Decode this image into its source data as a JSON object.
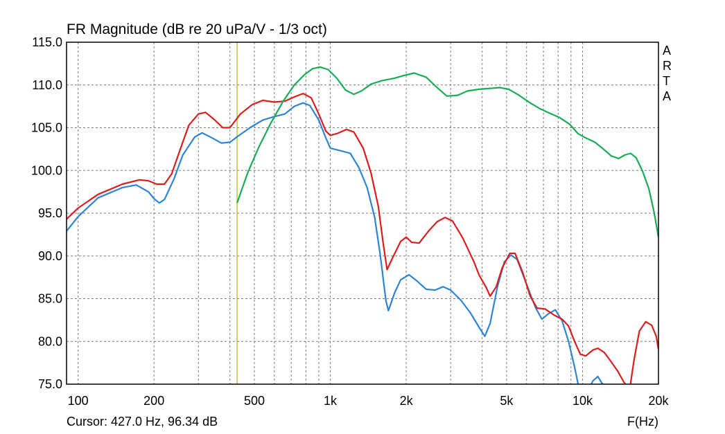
{
  "chart_data": {
    "type": "line",
    "title": "FR Magnitude (dB re 20 uPa/V - 1/3 oct)",
    "xlabel": "F(Hz)",
    "ylabel": "",
    "x_scale": "log",
    "xlim": [
      90,
      20000
    ],
    "ylim": [
      75,
      115
    ],
    "grid": true,
    "y_ticks": [
      "115.0",
      "110.0",
      "105.0",
      "100.0",
      "95.0",
      "90.0",
      "85.0",
      "80.0",
      "75.0"
    ],
    "x_ticks": [
      {
        "value": 100,
        "label": "100"
      },
      {
        "value": 200,
        "label": "200"
      },
      {
        "value": 500,
        "label": "500"
      },
      {
        "value": 1000,
        "label": "1k"
      },
      {
        "value": 2000,
        "label": "2k"
      },
      {
        "value": 5000,
        "label": "5k"
      },
      {
        "value": 10000,
        "label": "10k"
      },
      {
        "value": 20000,
        "label": "20k"
      }
    ],
    "watermark": [
      "A",
      "R",
      "T",
      "A"
    ],
    "cursor": {
      "x": 427,
      "label": "Cursor: 427.0 Hz, 96.34 dB",
      "color": "#b5b53a"
    },
    "series": [
      {
        "color": "#2b84d8",
        "points": [
          [
            90,
            92.9
          ],
          [
            100,
            94.6
          ],
          [
            120,
            96.8
          ],
          [
            150,
            98.0
          ],
          [
            170,
            98.3
          ],
          [
            190,
            97.5
          ],
          [
            200,
            96.7
          ],
          [
            210,
            96.2
          ],
          [
            220,
            96.6
          ],
          [
            240,
            99.0
          ],
          [
            260,
            101.8
          ],
          [
            290,
            103.9
          ],
          [
            310,
            104.4
          ],
          [
            340,
            103.8
          ],
          [
            370,
            103.2
          ],
          [
            400,
            103.3
          ],
          [
            430,
            104.0
          ],
          [
            480,
            105.0
          ],
          [
            540,
            105.9
          ],
          [
            600,
            106.3
          ],
          [
            660,
            106.6
          ],
          [
            720,
            107.5
          ],
          [
            780,
            107.9
          ],
          [
            830,
            107.6
          ],
          [
            900,
            105.9
          ],
          [
            960,
            103.8
          ],
          [
            1000,
            102.6
          ],
          [
            1100,
            102.3
          ],
          [
            1200,
            102.0
          ],
          [
            1300,
            100.3
          ],
          [
            1400,
            98.0
          ],
          [
            1500,
            94.5
          ],
          [
            1580,
            90.0
          ],
          [
            1660,
            84.8
          ],
          [
            1700,
            83.6
          ],
          [
            1800,
            85.7
          ],
          [
            1900,
            87.2
          ],
          [
            2050,
            87.8
          ],
          [
            2200,
            87.1
          ],
          [
            2400,
            86.1
          ],
          [
            2600,
            86.0
          ],
          [
            2800,
            86.4
          ],
          [
            3000,
            86.0
          ],
          [
            3300,
            84.8
          ],
          [
            3600,
            83.3
          ],
          [
            3900,
            81.6
          ],
          [
            4100,
            80.6
          ],
          [
            4300,
            82.1
          ],
          [
            4600,
            86.4
          ],
          [
            4900,
            89.3
          ],
          [
            5200,
            90.1
          ],
          [
            5500,
            89.6
          ],
          [
            6000,
            86.7
          ],
          [
            6500,
            84.0
          ],
          [
            6900,
            82.6
          ],
          [
            7300,
            83.2
          ],
          [
            7800,
            83.7
          ],
          [
            8300,
            82.4
          ],
          [
            8800,
            80.0
          ],
          [
            9300,
            77.0
          ],
          [
            9700,
            74.4
          ],
          [
            10500,
            74.2
          ],
          [
            11000,
            75.4
          ],
          [
            11500,
            75.9
          ],
          [
            12000,
            75.0
          ],
          [
            12600,
            73.0
          ]
        ]
      },
      {
        "color": "#dd1c1c",
        "points": [
          [
            90,
            94.3
          ],
          [
            100,
            95.6
          ],
          [
            120,
            97.2
          ],
          [
            150,
            98.4
          ],
          [
            175,
            98.9
          ],
          [
            190,
            98.8
          ],
          [
            205,
            98.4
          ],
          [
            220,
            98.4
          ],
          [
            235,
            99.6
          ],
          [
            255,
            102.6
          ],
          [
            275,
            105.3
          ],
          [
            300,
            106.6
          ],
          [
            320,
            106.8
          ],
          [
            345,
            106.0
          ],
          [
            375,
            105.0
          ],
          [
            400,
            105.0
          ],
          [
            440,
            106.6
          ],
          [
            490,
            107.7
          ],
          [
            540,
            108.2
          ],
          [
            600,
            108.0
          ],
          [
            660,
            108.1
          ],
          [
            720,
            108.6
          ],
          [
            780,
            109.0
          ],
          [
            840,
            108.5
          ],
          [
            900,
            106.6
          ],
          [
            960,
            104.6
          ],
          [
            1000,
            104.1
          ],
          [
            1060,
            104.3
          ],
          [
            1160,
            104.8
          ],
          [
            1240,
            104.5
          ],
          [
            1350,
            102.6
          ],
          [
            1450,
            99.7
          ],
          [
            1550,
            95.8
          ],
          [
            1620,
            91.5
          ],
          [
            1680,
            88.4
          ],
          [
            1760,
            89.7
          ],
          [
            1900,
            91.7
          ],
          [
            2000,
            92.2
          ],
          [
            2100,
            91.6
          ],
          [
            2250,
            91.5
          ],
          [
            2450,
            92.9
          ],
          [
            2650,
            94.0
          ],
          [
            2850,
            94.5
          ],
          [
            3050,
            94.1
          ],
          [
            3350,
            92.1
          ],
          [
            3700,
            89.4
          ],
          [
            3900,
            87.7
          ],
          [
            4150,
            86.3
          ],
          [
            4300,
            85.3
          ],
          [
            4550,
            86.4
          ],
          [
            4800,
            88.6
          ],
          [
            5150,
            90.3
          ],
          [
            5400,
            90.3
          ],
          [
            5800,
            88.0
          ],
          [
            6200,
            85.3
          ],
          [
            6600,
            83.9
          ],
          [
            7100,
            83.8
          ],
          [
            7700,
            83.1
          ],
          [
            8300,
            82.6
          ],
          [
            8800,
            81.8
          ],
          [
            9300,
            80.0
          ],
          [
            9800,
            78.5
          ],
          [
            10300,
            78.3
          ],
          [
            11000,
            79.0
          ],
          [
            11500,
            79.2
          ],
          [
            12200,
            78.7
          ],
          [
            13000,
            77.6
          ],
          [
            13800,
            76.5
          ],
          [
            14600,
            75.2
          ],
          [
            15400,
            74.5
          ],
          [
            16000,
            77.8
          ],
          [
            16800,
            81.2
          ],
          [
            17800,
            82.3
          ],
          [
            18800,
            81.9
          ],
          [
            19600,
            80.6
          ],
          [
            20000,
            79.1
          ]
        ]
      },
      {
        "color": "#17ad54",
        "points": [
          [
            427,
            96.2
          ],
          [
            470,
            99.7
          ],
          [
            520,
            102.7
          ],
          [
            580,
            105.5
          ],
          [
            650,
            108.1
          ],
          [
            720,
            110.0
          ],
          [
            790,
            111.2
          ],
          [
            850,
            111.9
          ],
          [
            910,
            112.1
          ],
          [
            980,
            111.8
          ],
          [
            1060,
            110.8
          ],
          [
            1150,
            109.4
          ],
          [
            1240,
            108.9
          ],
          [
            1330,
            109.3
          ],
          [
            1450,
            110.1
          ],
          [
            1600,
            110.5
          ],
          [
            1800,
            110.8
          ],
          [
            1950,
            111.1
          ],
          [
            2150,
            111.4
          ],
          [
            2400,
            110.9
          ],
          [
            2650,
            109.7
          ],
          [
            2900,
            108.7
          ],
          [
            3200,
            108.8
          ],
          [
            3500,
            109.3
          ],
          [
            3900,
            109.5
          ],
          [
            4300,
            109.6
          ],
          [
            4700,
            109.7
          ],
          [
            5100,
            109.5
          ],
          [
            5600,
            108.8
          ],
          [
            6200,
            107.9
          ],
          [
            6800,
            107.2
          ],
          [
            7400,
            106.7
          ],
          [
            8100,
            106.2
          ],
          [
            8900,
            105.4
          ],
          [
            9600,
            104.3
          ],
          [
            10300,
            103.8
          ],
          [
            11200,
            103.3
          ],
          [
            12100,
            102.5
          ],
          [
            13000,
            101.7
          ],
          [
            13900,
            101.4
          ],
          [
            14700,
            101.8
          ],
          [
            15500,
            102.0
          ],
          [
            16300,
            101.5
          ],
          [
            17300,
            99.9
          ],
          [
            18300,
            97.9
          ],
          [
            19200,
            95.2
          ],
          [
            20000,
            92.2
          ]
        ]
      }
    ]
  }
}
